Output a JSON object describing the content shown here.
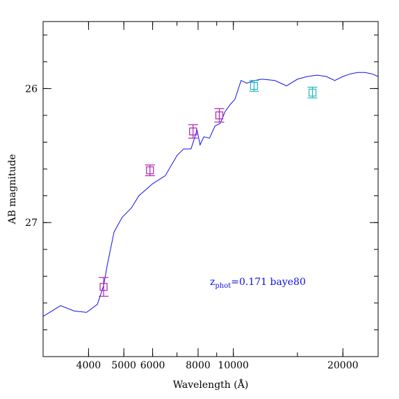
{
  "chart_data": {
    "type": "line",
    "xlabel": "Wavelength (Å)",
    "ylabel": "AB magnitude",
    "x_scale": "log",
    "xlim": [
      3000,
      25000
    ],
    "ylim": [
      28.0,
      25.5
    ],
    "y_inverted": true,
    "x_ticks": [
      4000,
      5000,
      6000,
      8000,
      10000,
      20000
    ],
    "x_tick_labels": [
      "4000",
      "5000",
      "6000",
      "8000",
      "10000",
      "20000"
    ],
    "y_ticks": [
      26,
      27
    ],
    "y_tick_labels": [
      "26",
      "27"
    ],
    "annotation": {
      "main": "z",
      "sub": "phot",
      "rest": "=0.171 baye80",
      "color": "#1010e0"
    },
    "series": [
      {
        "type": "line",
        "color": "#1010ee",
        "x": [
          3000,
          3350,
          3650,
          3950,
          4230,
          4400,
          4500,
          4700,
          4950,
          5250,
          5500,
          6000,
          6500,
          7000,
          7300,
          7650,
          7950,
          8100,
          8300,
          8600,
          8900,
          9200,
          9500,
          9800,
          10100,
          10500,
          10900,
          11400,
          12000,
          13000,
          14000,
          15000,
          16000,
          17000,
          18000,
          19000,
          20000,
          21000,
          22000,
          23000,
          24000,
          25000
        ],
        "y": [
          27.7,
          27.62,
          27.66,
          27.67,
          27.61,
          27.47,
          27.32,
          27.07,
          26.96,
          26.89,
          26.8,
          26.71,
          26.65,
          26.5,
          26.45,
          26.45,
          26.31,
          26.42,
          26.36,
          26.37,
          26.28,
          26.26,
          26.17,
          26.12,
          26.08,
          25.94,
          25.96,
          25.94,
          25.93,
          25.94,
          25.98,
          25.93,
          25.91,
          25.9,
          25.91,
          25.94,
          25.91,
          25.89,
          25.88,
          25.88,
          25.89,
          25.91
        ]
      },
      {
        "type": "points",
        "color": "#b020b0",
        "x": [
          4400,
          5900,
          7750,
          9150
        ],
        "y": [
          27.48,
          26.61,
          26.32,
          26.2
        ],
        "yerr": [
          0.07,
          0.04,
          0.05,
          0.05
        ]
      },
      {
        "type": "points",
        "color": "#20b8c0",
        "x": [
          11400,
          16500
        ],
        "y": [
          25.98,
          26.03
        ],
        "yerr": [
          0.04,
          0.04
        ]
      }
    ]
  }
}
